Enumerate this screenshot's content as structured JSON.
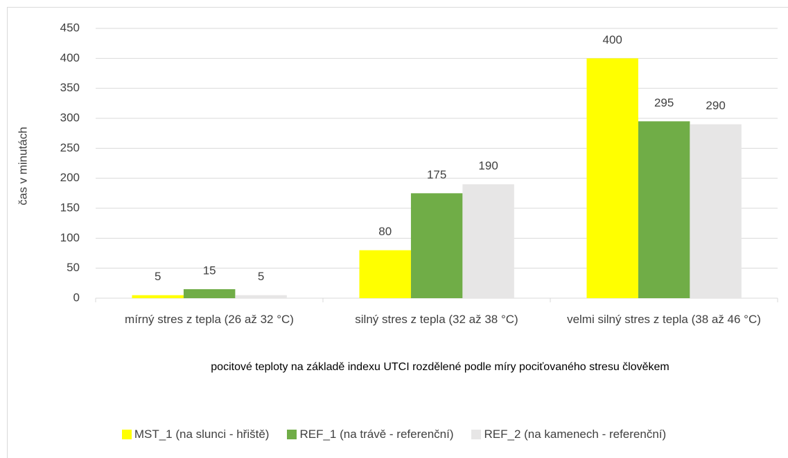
{
  "chart_data": {
    "type": "bar",
    "categories": [
      "mírný stres z tepla (26 až 32 °C)",
      "silný stres z tepla (32 až 38 °C)",
      "velmi silný stres z tepla (38 až 46 °C)"
    ],
    "series": [
      {
        "name": "MST_1 (na slunci - hřiště)",
        "color": "#ffff00",
        "values": [
          5,
          80,
          400
        ]
      },
      {
        "name": "REF_1 (na trávě - referenční)",
        "color": "#70ad47",
        "values": [
          15,
          175,
          295
        ]
      },
      {
        "name": "REF_2 (na kamenech - referenční)",
        "color": "#e7e6e6",
        "values": [
          5,
          190,
          290
        ]
      }
    ],
    "x_label": "pocitové teploty na základě indexu UTCI rozdělené podle míry pociťovaného stresu člověkem",
    "y_label": "čas v minutách",
    "ylim": [
      0,
      450
    ],
    "yticks": [
      0,
      50,
      100,
      150,
      200,
      250,
      300,
      350,
      400,
      450
    ],
    "grid": true,
    "legend": "bottom"
  }
}
